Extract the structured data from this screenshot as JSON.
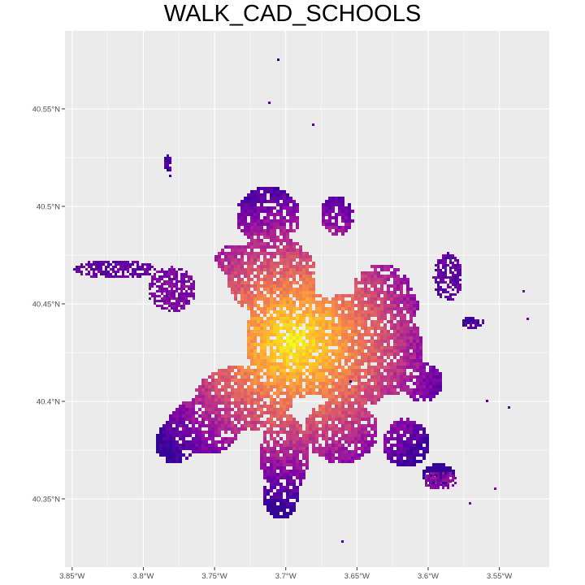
{
  "title": "WALK_CAD_SCHOOLS",
  "map": {
    "type": "raster-heatmap",
    "region_center": {
      "lon": -3.7,
      "lat": 40.44
    },
    "x_range": [
      -3.855,
      -3.515
    ],
    "y_range": [
      40.315,
      40.59
    ],
    "x_ticks": [
      {
        "value": -3.85,
        "label": "3.85°W"
      },
      {
        "value": -3.8,
        "label": "3.8°W"
      },
      {
        "value": -3.75,
        "label": "3.75°W"
      },
      {
        "value": -3.7,
        "label": "3.7°W"
      },
      {
        "value": -3.65,
        "label": "3.65°W"
      },
      {
        "value": -3.6,
        "label": "3.6°W"
      },
      {
        "value": -3.55,
        "label": "3.55°W"
      }
    ],
    "y_ticks": [
      {
        "value": 40.55,
        "label": "40.55°N"
      },
      {
        "value": 40.5,
        "label": "40.5°N"
      },
      {
        "value": 40.45,
        "label": "40.45°N"
      },
      {
        "value": 40.4,
        "label": "40.4°N"
      },
      {
        "value": 40.35,
        "label": "40.35°N"
      }
    ],
    "grid": true,
    "legend": "none",
    "color_scale": "plasma",
    "colors": {
      "panel_background": "#ebebeb",
      "gridline": "#ffffff",
      "high_value": "#f0f921",
      "mid_value": "#e16462",
      "low_value": "#0d0887"
    }
  }
}
